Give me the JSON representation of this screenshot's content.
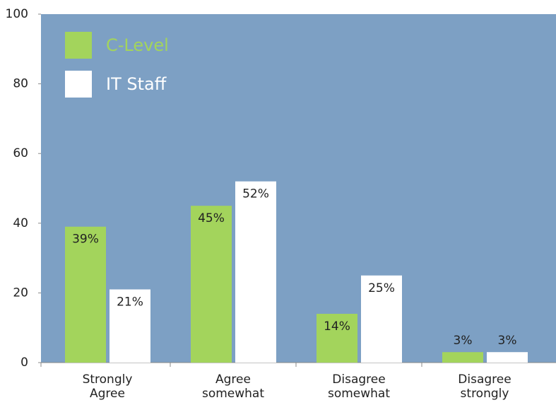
{
  "chart_data": {
    "type": "bar",
    "categories": [
      "Strongly Agree",
      "Agree somewhat",
      "Disagree somewhat",
      "Disagree strongly"
    ],
    "series": [
      {
        "name": "C-Level",
        "color": "#a3d45c",
        "values": [
          39,
          45,
          14,
          3
        ],
        "value_labels": [
          "39%",
          "45%",
          "14%",
          "3%"
        ]
      },
      {
        "name": "IT Staff",
        "color": "#ffffff",
        "values": [
          21,
          52,
          25,
          3
        ],
        "value_labels": [
          "21%",
          "52%",
          "25%",
          "3%"
        ]
      }
    ],
    "ylim": [
      0,
      100
    ],
    "yticks": [
      0,
      20,
      40,
      60,
      80,
      100
    ],
    "background": "#7da0c4"
  }
}
